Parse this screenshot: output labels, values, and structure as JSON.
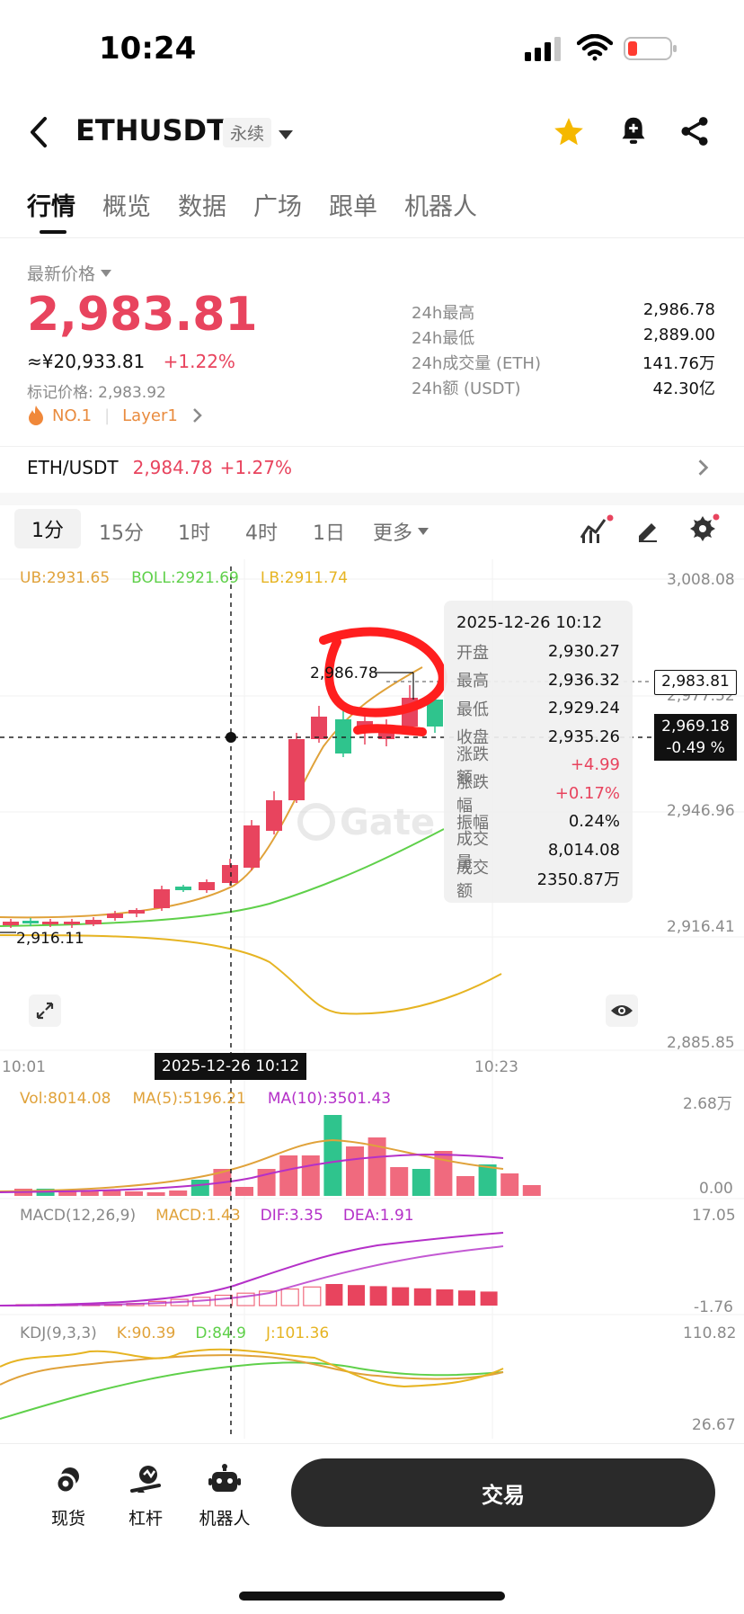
{
  "status_bar": {
    "time": "10:24"
  },
  "header": {
    "symbol": "ETHUSDT",
    "contract_badge": "永续"
  },
  "tabs": [
    "行情",
    "概览",
    "数据",
    "广场",
    "跟单",
    "机器人"
  ],
  "price": {
    "latest_label": "最新价格",
    "value": "2,983.81",
    "cny": "≈¥20,933.81",
    "change": "+1.22%",
    "mark": "标记价格: 2,983.92",
    "rank": "NO.1",
    "tag": "Layer1"
  },
  "stats": [
    {
      "label": "24h最高",
      "value": "2,986.78"
    },
    {
      "label": "24h最低",
      "value": "2,889.00"
    },
    {
      "label": "24h成交量 (ETH)",
      "value": "141.76万"
    },
    {
      "label": "24h额 (USDT)",
      "value": "42.30亿"
    }
  ],
  "spot": {
    "pair": "ETH/USDT",
    "price": "2,984.78",
    "change": "+1.27%"
  },
  "timeframes": {
    "items": [
      "1分",
      "15分",
      "1时",
      "4时",
      "1日"
    ],
    "more": "更多"
  },
  "boll": {
    "ub": "UB:2931.65",
    "boll": "BOLL:2921.69",
    "lb": "LB:2911.74"
  },
  "price_axis": [
    "3,008.08",
    "2,977.52",
    "2,946.96",
    "2,916.41",
    "2,885.85"
  ],
  "chart_labels": {
    "high_marker": "2,986.78",
    "low_marker": "2,916.11",
    "last_price": "2,983.81",
    "cursor_price": "2,969.18",
    "cursor_pct": "-0.49 %",
    "cursor_time": "2025-12-26 10:12",
    "time_start": "10:01",
    "time_end": "10:23"
  },
  "tooltip": {
    "date": "2025-12-26 10:12",
    "rows": [
      {
        "label": "开盘",
        "value": "2,930.27",
        "color": "#111111"
      },
      {
        "label": "最高",
        "value": "2,936.32",
        "color": "#111111"
      },
      {
        "label": "最低",
        "value": "2,929.24",
        "color": "#111111"
      },
      {
        "label": "收盘",
        "value": "2,935.26",
        "color": "#111111"
      },
      {
        "label": "涨跌额",
        "value": "+4.99",
        "color": "#e8445e"
      },
      {
        "label": "涨跌幅",
        "value": "+0.17%",
        "color": "#e8445e"
      },
      {
        "label": "振幅",
        "value": "0.24%",
        "color": "#111111"
      },
      {
        "label": "成交量",
        "value": "8,014.08",
        "color": "#111111"
      },
      {
        "label": "成交额",
        "value": "2350.87万",
        "color": "#111111"
      }
    ]
  },
  "volume": {
    "vol": "Vol:8014.08",
    "ma5": "MA(5):5196.21",
    "ma10": "MA(10):3501.43",
    "axis_top": "2.68万",
    "axis_bottom": "0.00"
  },
  "macd": {
    "title": "MACD(12,26,9)",
    "macd": "MACD:1.43",
    "dif": "DIF:3.35",
    "dea": "DEA:1.91",
    "axis_top": "17.05",
    "axis_bottom": "-1.76"
  },
  "kdj": {
    "title": "KDJ(9,3,3)",
    "k": "K:90.39",
    "d": "D:84.9",
    "j": "J:101.36",
    "axis_top": "110.82",
    "axis_bottom": "26.67"
  },
  "bottom_nav": {
    "spot": "现货",
    "margin": "杠杆",
    "bot": "机器人",
    "trade": "交易"
  },
  "colors": {
    "up": "#e8445e",
    "down": "#2fc48d",
    "boll_ub": "#e0a23a",
    "boll_mid": "#5fd04a",
    "boll_lb": "#e6b422",
    "ma10": "#b430c8",
    "annotation": "#ff1e1e"
  }
}
